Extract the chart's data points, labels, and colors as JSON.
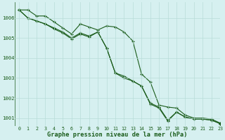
{
  "title": "Graphe pression niveau de la mer (hPa)",
  "background_color": "#d6f0f0",
  "grid_color": "#b8ddd8",
  "line_color": "#1a5c1a",
  "marker_color": "#1a5c1a",
  "xlim": [
    -0.5,
    23
  ],
  "ylim": [
    1000.6,
    1006.8
  ],
  "yticks": [
    1001,
    1002,
    1003,
    1004,
    1005,
    1006
  ],
  "xtick_labels": [
    "0",
    "1",
    "2",
    "3",
    "4",
    "5",
    "6",
    "7",
    "8",
    "9",
    "10",
    "11",
    "12",
    "13",
    "14",
    "15",
    "16",
    "17",
    "18",
    "19",
    "20",
    "21",
    "22",
    "23"
  ],
  "series": [
    [
      1006.4,
      1006.4,
      1006.1,
      1006.1,
      1005.8,
      1005.5,
      1005.2,
      1005.7,
      1005.55,
      1005.4,
      1005.6,
      1005.55,
      1005.3,
      1004.85,
      1003.2,
      1002.8,
      1001.65,
      1001.55,
      1001.5,
      1001.15,
      1001.0,
      1001.0,
      1000.95,
      1000.75
    ],
    [
      1006.4,
      1006.0,
      1005.85,
      1005.7,
      1005.5,
      1005.3,
      1005.0,
      1005.25,
      1005.1,
      1005.3,
      1004.5,
      1003.25,
      1003.1,
      1002.85,
      1002.6,
      1001.75,
      1001.55,
      1000.9,
      1001.3,
      1001.05,
      1000.95,
      1000.95,
      1000.9,
      1000.72
    ],
    [
      1006.4,
      1006.0,
      1005.85,
      1005.7,
      1005.45,
      1005.25,
      1004.95,
      1005.2,
      1005.05,
      1005.3,
      1004.5,
      1003.25,
      1003.0,
      1002.85,
      1002.6,
      1001.7,
      1001.5,
      1000.85,
      1001.3,
      1001.05,
      1000.95,
      1000.95,
      1000.9,
      1000.72
    ]
  ]
}
